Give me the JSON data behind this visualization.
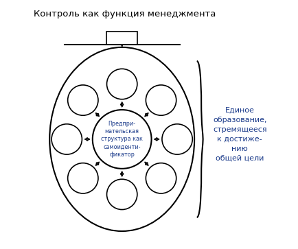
{
  "title": "Контроль как функция менеджмента",
  "center_text": "Предпри-\nмательская\nструктура как\nсамоиденти-\nфикатор",
  "right_text_lines": [
    "Единое",
    "образование,",
    "стремящееся",
    "к достиже-",
    "нию",
    "общей цели"
  ],
  "bg_color": "#ffffff",
  "main_color": "#000000",
  "text_color": "#1a3a8a",
  "center_circle_r": 0.12,
  "small_circle_r": 0.062,
  "small_circle_orbit": 0.225,
  "num_small_circles": 8,
  "figsize": [
    4.34,
    3.63
  ],
  "dpi": 100
}
